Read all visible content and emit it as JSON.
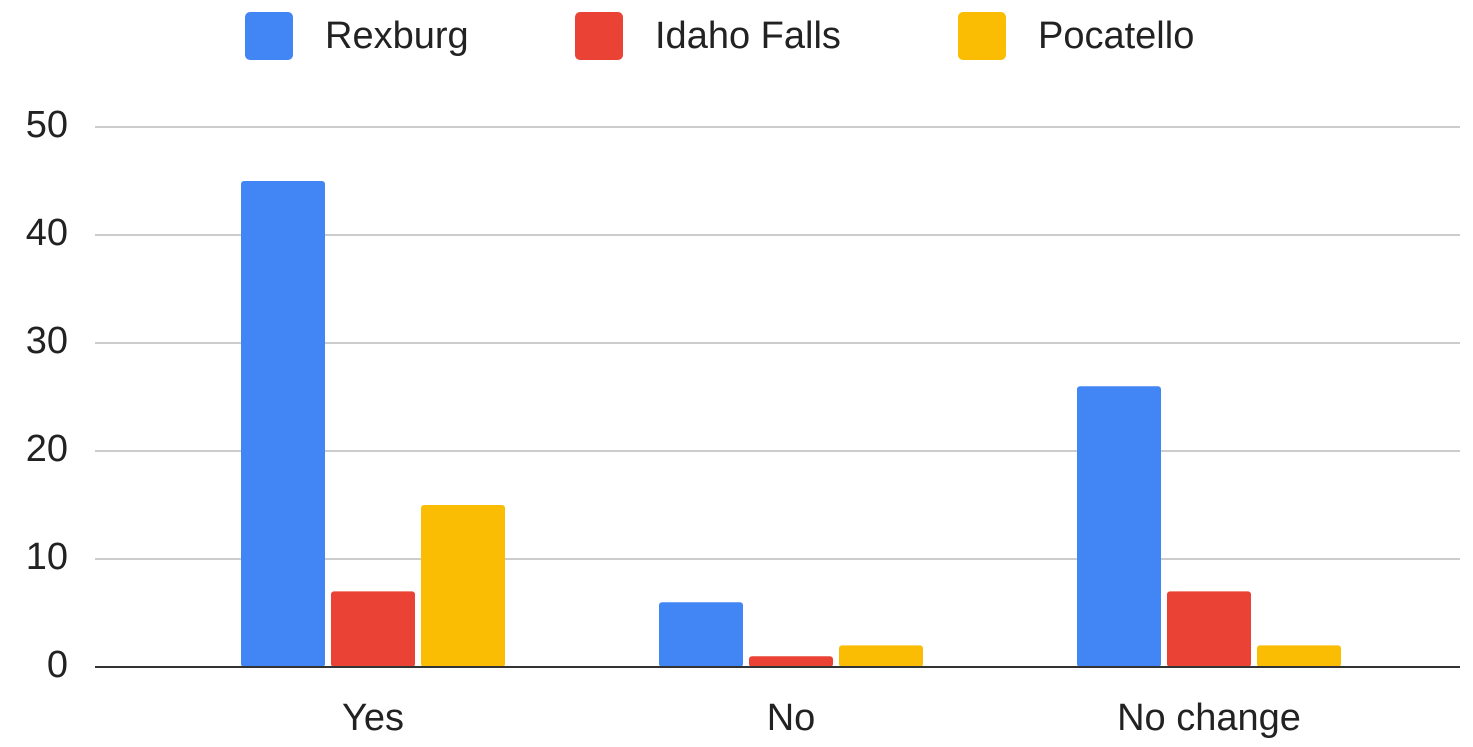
{
  "chart_data": {
    "type": "bar",
    "categories": [
      "Yes",
      "No",
      "No change"
    ],
    "series": [
      {
        "name": "Rexburg",
        "color": "#4285f4",
        "values": [
          45,
          6,
          26
        ]
      },
      {
        "name": "Idaho Falls",
        "color": "#ea4335",
        "values": [
          7,
          1,
          7
        ]
      },
      {
        "name": "Pocatello",
        "color": "#fbbc04",
        "values": [
          15,
          2,
          2
        ]
      }
    ],
    "ylim": [
      0,
      50
    ],
    "yticks": [
      0,
      10,
      20,
      30,
      40,
      50
    ],
    "grid": true,
    "legend": "top"
  }
}
